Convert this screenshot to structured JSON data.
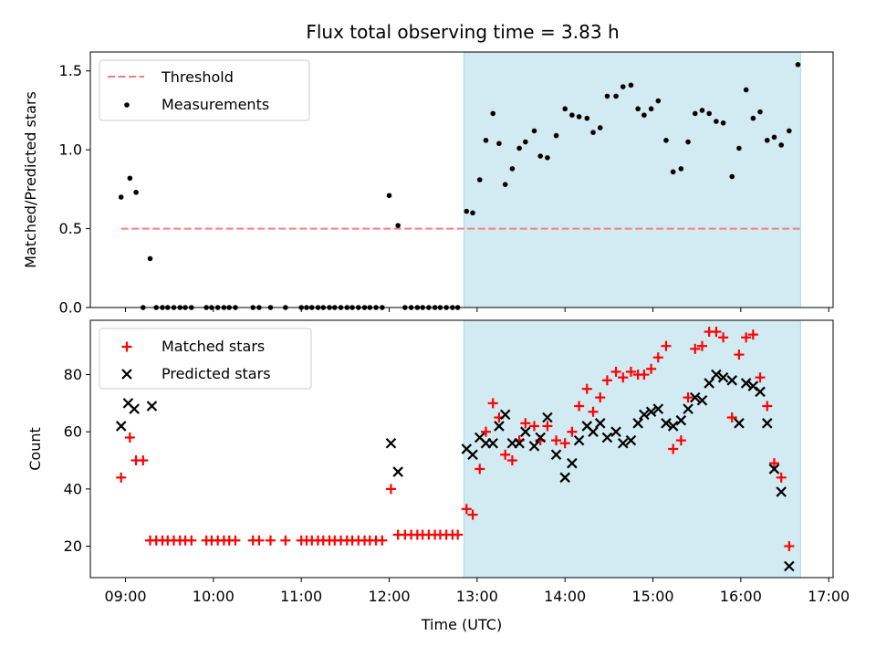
{
  "title": "Flux total observing time = 3.83 h",
  "colors": {
    "threshold": "#f08080",
    "shade": "#add8e6",
    "matched": "#ff0000",
    "predicted": "#000000",
    "measure": "#000000"
  },
  "chart_data": [
    {
      "type": "scatter",
      "ylabel": "Matched/Predicted stars",
      "xlabel": "",
      "xlim": [
        8.6,
        17.05
      ],
      "ylim": [
        0,
        1.62
      ],
      "yticks": [
        0.0,
        0.5,
        1.0,
        1.5
      ],
      "ytick_labels": [
        "0.0",
        "0.5",
        "1.0",
        "1.5"
      ],
      "shaded_range": [
        12.85,
        16.68
      ],
      "threshold": {
        "name": "Threshold",
        "y": 0.5,
        "x_range": [
          8.95,
          16.68
        ]
      },
      "legend": [
        "Threshold",
        "Measurements"
      ],
      "legend_loc": "upper-left",
      "series": [
        {
          "name": "Measurements",
          "points": [
            [
              8.95,
              0.7
            ],
            [
              9.05,
              0.82
            ],
            [
              9.12,
              0.73
            ],
            [
              9.28,
              0.31
            ],
            [
              9.2,
              0
            ],
            [
              9.35,
              0
            ],
            [
              9.42,
              0
            ],
            [
              9.48,
              0
            ],
            [
              9.55,
              0
            ],
            [
              9.62,
              0
            ],
            [
              9.68,
              0
            ],
            [
              9.75,
              0
            ],
            [
              9.92,
              0
            ],
            [
              9.98,
              0
            ],
            [
              10.05,
              0
            ],
            [
              10.12,
              0
            ],
            [
              10.18,
              0
            ],
            [
              10.25,
              0
            ],
            [
              10.45,
              0
            ],
            [
              10.52,
              0
            ],
            [
              10.65,
              0
            ],
            [
              10.82,
              0
            ],
            [
              11.0,
              0
            ],
            [
              11.06,
              0
            ],
            [
              11.12,
              0
            ],
            [
              11.19,
              0
            ],
            [
              11.25,
              0
            ],
            [
              11.32,
              0
            ],
            [
              11.38,
              0
            ],
            [
              11.45,
              0
            ],
            [
              11.52,
              0
            ],
            [
              11.58,
              0
            ],
            [
              11.65,
              0
            ],
            [
              11.72,
              0
            ],
            [
              11.78,
              0
            ],
            [
              11.85,
              0
            ],
            [
              11.92,
              0
            ],
            [
              12.0,
              0.71
            ],
            [
              12.1,
              0.52
            ],
            [
              12.18,
              0
            ],
            [
              12.25,
              0
            ],
            [
              12.32,
              0
            ],
            [
              12.38,
              0
            ],
            [
              12.45,
              0
            ],
            [
              12.52,
              0
            ],
            [
              12.58,
              0
            ],
            [
              12.65,
              0
            ],
            [
              12.72,
              0
            ],
            [
              12.78,
              0
            ],
            [
              12.88,
              0.61
            ],
            [
              12.95,
              0.6
            ],
            [
              13.03,
              0.81
            ],
            [
              13.1,
              1.06
            ],
            [
              13.18,
              1.23
            ],
            [
              13.25,
              1.04
            ],
            [
              13.32,
              0.78
            ],
            [
              13.4,
              0.88
            ],
            [
              13.48,
              1.01
            ],
            [
              13.55,
              1.05
            ],
            [
              13.65,
              1.12
            ],
            [
              13.72,
              0.96
            ],
            [
              13.8,
              0.95
            ],
            [
              13.9,
              1.09
            ],
            [
              14.0,
              1.26
            ],
            [
              14.08,
              1.22
            ],
            [
              14.16,
              1.21
            ],
            [
              14.25,
              1.2
            ],
            [
              14.32,
              1.11
            ],
            [
              14.4,
              1.14
            ],
            [
              14.48,
              1.34
            ],
            [
              14.58,
              1.34
            ],
            [
              14.66,
              1.4
            ],
            [
              14.75,
              1.41
            ],
            [
              14.83,
              1.26
            ],
            [
              14.9,
              1.22
            ],
            [
              14.98,
              1.26
            ],
            [
              15.06,
              1.31
            ],
            [
              15.15,
              1.06
            ],
            [
              15.23,
              0.86
            ],
            [
              15.32,
              0.88
            ],
            [
              15.4,
              1.05
            ],
            [
              15.48,
              1.23
            ],
            [
              15.56,
              1.25
            ],
            [
              15.64,
              1.23
            ],
            [
              15.72,
              1.18
            ],
            [
              15.8,
              1.17
            ],
            [
              15.9,
              0.83
            ],
            [
              15.98,
              1.01
            ],
            [
              16.06,
              1.38
            ],
            [
              16.14,
              1.2
            ],
            [
              16.22,
              1.24
            ],
            [
              16.3,
              1.06
            ],
            [
              16.38,
              1.08
            ],
            [
              16.46,
              1.03
            ],
            [
              16.55,
              1.12
            ],
            [
              16.65,
              1.54
            ]
          ]
        }
      ]
    },
    {
      "type": "scatter",
      "ylabel": "Count",
      "xlabel": "Time (UTC)",
      "xlim": [
        8.6,
        17.05
      ],
      "ylim": [
        9,
        99
      ],
      "yticks": [
        20,
        40,
        60,
        80
      ],
      "ytick_labels": [
        "20",
        "40",
        "60",
        "80"
      ],
      "xticks": [
        9,
        10,
        11,
        12,
        13,
        14,
        15,
        16,
        17
      ],
      "xtick_labels": [
        "09:00",
        "10:00",
        "11:00",
        "12:00",
        "13:00",
        "14:00",
        "15:00",
        "16:00",
        "17:00"
      ],
      "shaded_range": [
        12.85,
        16.68
      ],
      "legend": [
        "Matched stars",
        "Predicted stars"
      ],
      "legend_loc": "upper-left",
      "series": [
        {
          "name": "Matched stars",
          "marker": "plus",
          "points": [
            [
              8.95,
              44
            ],
            [
              9.05,
              58
            ],
            [
              9.12,
              50
            ],
            [
              9.2,
              50
            ],
            [
              9.28,
              22
            ],
            [
              9.35,
              22
            ],
            [
              9.42,
              22
            ],
            [
              9.48,
              22
            ],
            [
              9.55,
              22
            ],
            [
              9.62,
              22
            ],
            [
              9.68,
              22
            ],
            [
              9.75,
              22
            ],
            [
              9.92,
              22
            ],
            [
              9.98,
              22
            ],
            [
              10.05,
              22
            ],
            [
              10.12,
              22
            ],
            [
              10.18,
              22
            ],
            [
              10.25,
              22
            ],
            [
              10.45,
              22
            ],
            [
              10.52,
              22
            ],
            [
              10.65,
              22
            ],
            [
              10.82,
              22
            ],
            [
              11.0,
              22
            ],
            [
              11.06,
              22
            ],
            [
              11.12,
              22
            ],
            [
              11.19,
              22
            ],
            [
              11.25,
              22
            ],
            [
              11.32,
              22
            ],
            [
              11.38,
              22
            ],
            [
              11.45,
              22
            ],
            [
              11.52,
              22
            ],
            [
              11.58,
              22
            ],
            [
              11.65,
              22
            ],
            [
              11.72,
              22
            ],
            [
              11.78,
              22
            ],
            [
              11.85,
              22
            ],
            [
              11.92,
              22
            ],
            [
              12.02,
              40
            ],
            [
              12.1,
              24
            ],
            [
              12.18,
              24
            ],
            [
              12.25,
              24
            ],
            [
              12.32,
              24
            ],
            [
              12.38,
              24
            ],
            [
              12.45,
              24
            ],
            [
              12.52,
              24
            ],
            [
              12.58,
              24
            ],
            [
              12.65,
              24
            ],
            [
              12.72,
              24
            ],
            [
              12.78,
              24
            ],
            [
              12.88,
              33
            ],
            [
              12.95,
              31
            ],
            [
              13.03,
              47
            ],
            [
              13.1,
              60
            ],
            [
              13.18,
              70
            ],
            [
              13.25,
              65
            ],
            [
              13.32,
              52
            ],
            [
              13.4,
              50
            ],
            [
              13.48,
              57
            ],
            [
              13.55,
              63
            ],
            [
              13.65,
              62
            ],
            [
              13.72,
              57
            ],
            [
              13.8,
              62
            ],
            [
              13.9,
              57
            ],
            [
              14.0,
              56
            ],
            [
              14.08,
              60
            ],
            [
              14.16,
              69
            ],
            [
              14.25,
              75
            ],
            [
              14.32,
              67
            ],
            [
              14.4,
              72
            ],
            [
              14.48,
              78
            ],
            [
              14.58,
              81
            ],
            [
              14.66,
              79
            ],
            [
              14.75,
              81
            ],
            [
              14.83,
              80
            ],
            [
              14.9,
              80
            ],
            [
              14.98,
              82
            ],
            [
              15.06,
              86
            ],
            [
              15.15,
              90
            ],
            [
              15.23,
              54
            ],
            [
              15.32,
              57
            ],
            [
              15.4,
              72
            ],
            [
              15.48,
              89
            ],
            [
              15.56,
              90
            ],
            [
              15.64,
              95
            ],
            [
              15.72,
              95
            ],
            [
              15.8,
              93
            ],
            [
              15.9,
              65
            ],
            [
              15.98,
              87
            ],
            [
              16.06,
              93
            ],
            [
              16.14,
              94
            ],
            [
              16.22,
              79
            ],
            [
              16.3,
              69
            ],
            [
              16.38,
              49
            ],
            [
              16.46,
              44
            ],
            [
              16.55,
              20
            ]
          ]
        },
        {
          "name": "Predicted stars",
          "marker": "x",
          "points": [
            [
              8.95,
              62
            ],
            [
              9.03,
              70
            ],
            [
              9.1,
              68
            ],
            [
              9.3,
              69
            ],
            [
              12.02,
              56
            ],
            [
              12.1,
              46
            ],
            [
              12.88,
              54
            ],
            [
              12.95,
              52
            ],
            [
              13.03,
              58
            ],
            [
              13.1,
              56
            ],
            [
              13.18,
              56
            ],
            [
              13.25,
              62
            ],
            [
              13.32,
              66
            ],
            [
              13.4,
              56
            ],
            [
              13.48,
              56
            ],
            [
              13.55,
              60
            ],
            [
              13.65,
              55
            ],
            [
              13.72,
              58
            ],
            [
              13.8,
              65
            ],
            [
              13.9,
              52
            ],
            [
              14.0,
              44
            ],
            [
              14.08,
              49
            ],
            [
              14.16,
              57
            ],
            [
              14.25,
              62
            ],
            [
              14.32,
              60
            ],
            [
              14.4,
              63
            ],
            [
              14.48,
              58
            ],
            [
              14.58,
              60
            ],
            [
              14.66,
              56
            ],
            [
              14.75,
              57
            ],
            [
              14.83,
              63
            ],
            [
              14.9,
              66
            ],
            [
              14.98,
              67
            ],
            [
              15.06,
              68
            ],
            [
              15.15,
              63
            ],
            [
              15.23,
              62
            ],
            [
              15.32,
              64
            ],
            [
              15.4,
              68
            ],
            [
              15.48,
              72
            ],
            [
              15.56,
              71
            ],
            [
              15.64,
              77
            ],
            [
              15.72,
              80
            ],
            [
              15.8,
              79
            ],
            [
              15.9,
              78
            ],
            [
              15.98,
              63
            ],
            [
              16.06,
              77
            ],
            [
              16.14,
              76
            ],
            [
              16.22,
              74
            ],
            [
              16.3,
              63
            ],
            [
              16.38,
              47
            ],
            [
              16.46,
              39
            ],
            [
              16.55,
              13
            ]
          ]
        }
      ]
    }
  ]
}
